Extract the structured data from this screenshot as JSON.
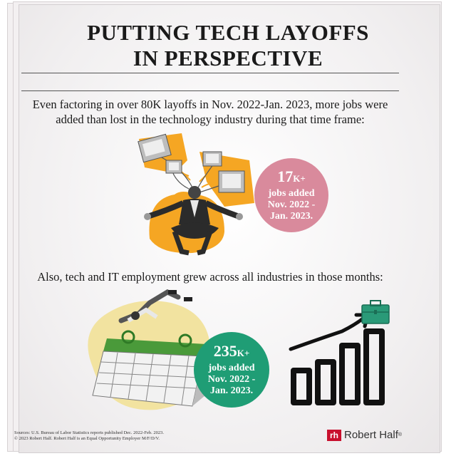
{
  "title_line1": "PUTTING TECH LAYOFFS",
  "title_line2": "IN PERSPECTIVE",
  "intro_line1": "Even factoring in over 80K layoffs in Nov. 2022-Jan. 2023, more jobs were",
  "intro_line2": "added than lost in the technology industry during that time frame:",
  "stat1": {
    "value": "17",
    "suffix": "K+",
    "l1": "jobs added",
    "l2": "Nov. 2022 -",
    "l3": "Jan. 2023."
  },
  "line2": "Also, tech and IT employment grew across all industries in those months:",
  "stat2": {
    "value": "235",
    "suffix": "K+",
    "l1": "jobs added",
    "l2": "Nov. 2022 -",
    "l3": "Jan. 2023."
  },
  "footnote1": "Sources: U.S. Bureau of Labor Statistics reports published Dec. 2022-Feb. 2023.",
  "footnote2": "© 2023 Robert Half. Robert Half is an Equal Opportunity Employer M/F/D/V.",
  "brand": {
    "mark": "rh",
    "name": "Robert Half",
    "reg": "®"
  },
  "colors": {
    "pink": "#d98a9c",
    "green": "#1f9d75",
    "orange": "#f5a623",
    "yellow": "#f2e3a0"
  }
}
